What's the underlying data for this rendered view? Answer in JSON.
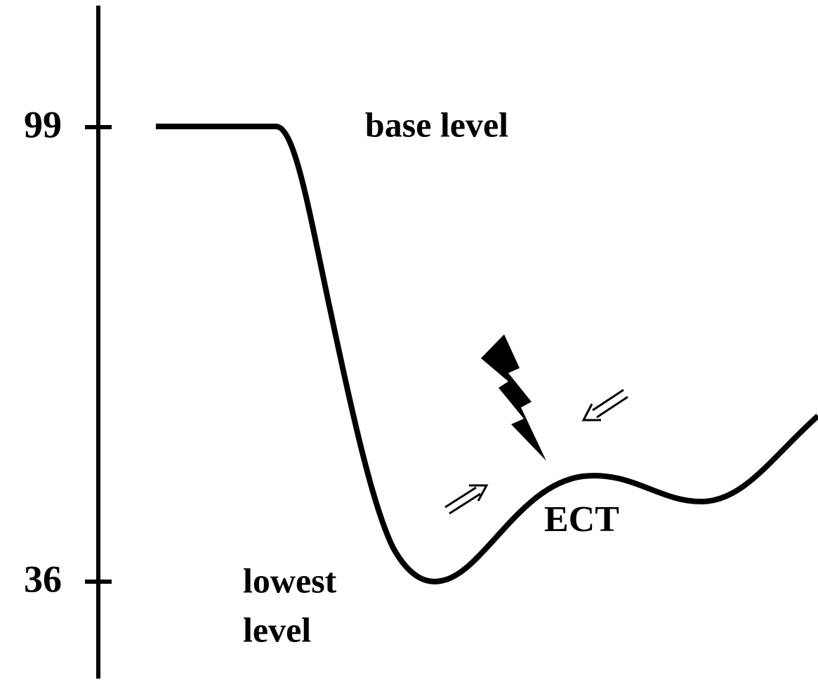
{
  "axis": {
    "ticks": [
      "99",
      "36"
    ]
  },
  "labels": {
    "base_level": "base level",
    "lowest_level": [
      "lowest",
      "level"
    ],
    "ect": "ECT"
  }
}
